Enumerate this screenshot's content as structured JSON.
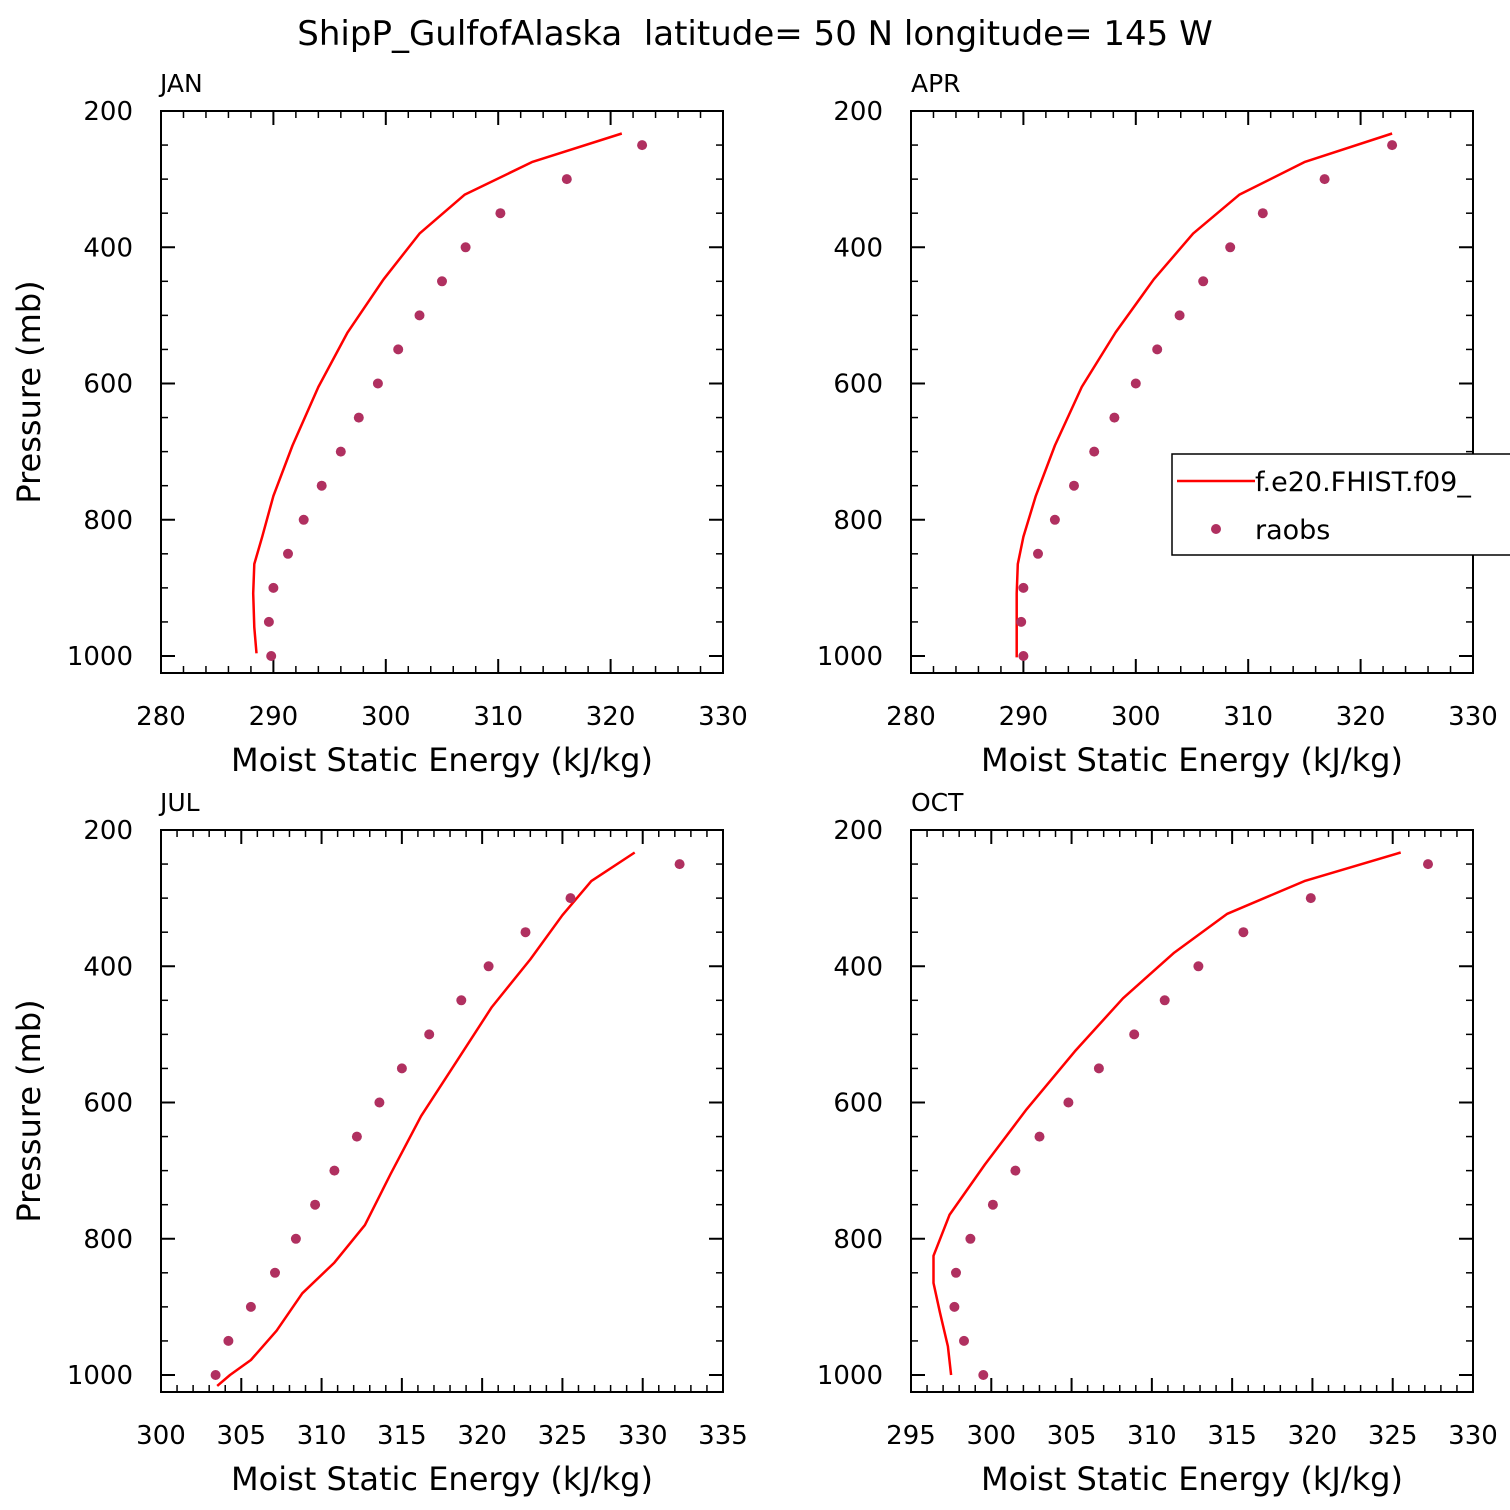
{
  "figure": {
    "title": "ShipP_GulfofAlaska  latitude= 50 N longitude= 145 W",
    "colors": {
      "model": "#ff0000",
      "obs": "#b03060",
      "axes": "#000000"
    },
    "legend": {
      "placement": "right-middle",
      "model_label": "f.e20.FHIST.f09_",
      "obs_label": "raobs"
    }
  },
  "chart_data": [
    {
      "type": "line+scatter",
      "panel_label": "JAN",
      "xlabel": "Moist Static Energy (kJ/kg)",
      "ylabel": "Pressure (mb)",
      "xlim": [
        280,
        330
      ],
      "ylim": [
        1000,
        200
      ],
      "xticks": [
        "280",
        "290",
        "300",
        "310",
        "320",
        "330"
      ],
      "yticks": [
        "200",
        "400",
        "600",
        "800",
        "1000"
      ],
      "series": [
        {
          "kind": "line",
          "p": [
            996,
            958,
            908,
            865,
            825,
            765,
            691,
            605,
            525,
            447,
            380,
            323,
            275,
            233
          ],
          "mse": [
            288.5,
            288.3,
            288.2,
            288.3,
            289.0,
            290.0,
            291.7,
            294.0,
            296.6,
            299.8,
            303.0,
            307.0,
            313.0,
            321.0
          ]
        },
        {
          "kind": "scatter",
          "p": [
            1000,
            950,
            900,
            850,
            800,
            750,
            700,
            650,
            600,
            550,
            500,
            450,
            400,
            350,
            300,
            250
          ],
          "mse": [
            289.8,
            289.6,
            290.0,
            291.3,
            292.7,
            294.3,
            296.0,
            297.6,
            299.3,
            301.1,
            303.0,
            305.0,
            307.1,
            310.2,
            316.1,
            322.8
          ]
        }
      ]
    },
    {
      "type": "line+scatter",
      "panel_label": "APR",
      "xlabel": "Moist Static Energy (kJ/kg)",
      "ylabel": "",
      "xlim": [
        280,
        330
      ],
      "ylim": [
        1000,
        200
      ],
      "xticks": [
        "280",
        "290",
        "300",
        "310",
        "320",
        "330"
      ],
      "yticks": [
        "200",
        "400",
        "600",
        "800",
        "1000"
      ],
      "series": [
        {
          "kind": "line",
          "p": [
            1002,
            958,
            908,
            865,
            825,
            765,
            691,
            605,
            525,
            447,
            380,
            323,
            275,
            233
          ],
          "mse": [
            289.4,
            289.4,
            289.4,
            289.5,
            290.0,
            291.1,
            292.8,
            295.2,
            298.2,
            301.6,
            305.1,
            309.2,
            315.0,
            322.8
          ]
        },
        {
          "kind": "scatter",
          "p": [
            1000,
            950,
            900,
            850,
            800,
            750,
            700,
            650,
            600,
            550,
            500,
            450,
            400,
            350,
            300,
            250
          ],
          "mse": [
            290.0,
            289.8,
            290.0,
            291.3,
            292.8,
            294.5,
            296.3,
            298.1,
            300.0,
            301.9,
            303.9,
            306.0,
            308.4,
            311.3,
            316.8,
            322.8
          ]
        }
      ]
    },
    {
      "type": "line+scatter",
      "panel_label": "JUL",
      "xlabel": "Moist Static Energy (kJ/kg)",
      "ylabel": "Pressure (mb)",
      "xlim": [
        300,
        335
      ],
      "ylim": [
        1000,
        200
      ],
      "xticks": [
        "300",
        "305",
        "310",
        "315",
        "320",
        "325",
        "330",
        "335"
      ],
      "yticks": [
        "200",
        "400",
        "600",
        "800",
        "1000"
      ],
      "series": [
        {
          "kind": "line",
          "p": [
            1016,
            1000,
            978,
            935,
            880,
            835,
            780,
            705,
            620,
            540,
            460,
            390,
            325,
            275,
            233
          ],
          "mse": [
            303.5,
            304.3,
            305.6,
            307.2,
            308.8,
            310.8,
            312.7,
            314.3,
            316.2,
            318.4,
            320.6,
            323.0,
            325.0,
            326.8,
            329.5
          ]
        },
        {
          "kind": "scatter",
          "p": [
            1000,
            950,
            900,
            850,
            800,
            750,
            700,
            650,
            600,
            550,
            500,
            450,
            400,
            350,
            300,
            250
          ],
          "mse": [
            303.4,
            304.2,
            305.6,
            307.1,
            308.4,
            309.6,
            310.8,
            312.2,
            313.6,
            315.0,
            316.7,
            318.7,
            320.4,
            322.7,
            325.5,
            332.3
          ]
        }
      ]
    },
    {
      "type": "line+scatter",
      "panel_label": "OCT",
      "xlabel": "Moist Static Energy (kJ/kg)",
      "ylabel": "",
      "xlim": [
        295,
        330
      ],
      "ylim": [
        1000,
        200
      ],
      "xticks": [
        "295",
        "300",
        "305",
        "310",
        "315",
        "320",
        "325",
        "330"
      ],
      "yticks": [
        "200",
        "400",
        "600",
        "800",
        "1000"
      ],
      "series": [
        {
          "kind": "line",
          "p": [
            1000,
            958,
            908,
            865,
            825,
            765,
            691,
            610,
            525,
            447,
            380,
            323,
            275,
            233
          ],
          "mse": [
            297.5,
            297.3,
            296.8,
            296.4,
            296.4,
            297.4,
            299.6,
            302.2,
            305.2,
            308.2,
            311.4,
            314.7,
            319.5,
            325.5
          ]
        },
        {
          "kind": "scatter",
          "p": [
            1000,
            950,
            900,
            850,
            800,
            750,
            700,
            650,
            600,
            550,
            500,
            450,
            400,
            350,
            300,
            250
          ],
          "mse": [
            299.5,
            298.3,
            297.7,
            297.8,
            298.7,
            300.1,
            301.5,
            303.0,
            304.8,
            306.7,
            308.9,
            310.8,
            312.9,
            315.7,
            319.9,
            327.2
          ]
        }
      ]
    }
  ]
}
